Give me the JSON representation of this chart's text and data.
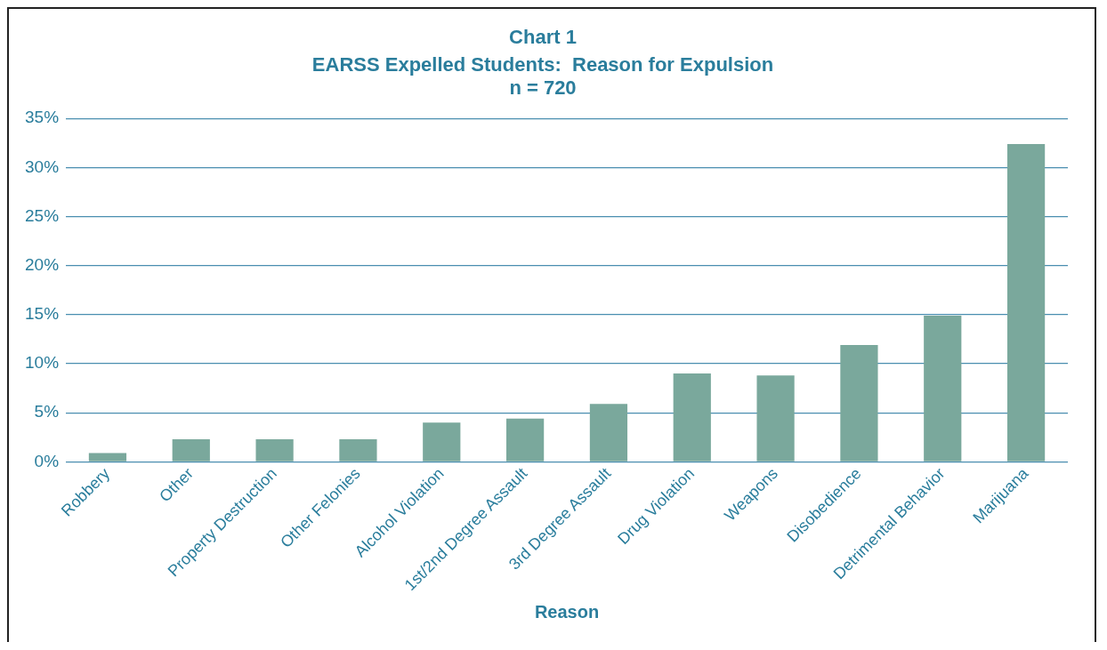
{
  "chart_data": {
    "type": "bar",
    "title": "Chart 1",
    "subtitle": "EARSS Expelled Students:  Reason for Expulsion\nn = 720",
    "xlabel": "Reason",
    "categories": [
      "Robbery",
      "Other",
      "Property Destruction",
      "Other Felonies",
      "Alcohol Violation",
      "1st/2nd Degree Assault",
      "3rd Degree Assault",
      "Drug Violation",
      "Weapons",
      "Disobedience",
      "Detrimental Behavior",
      "Marijuana"
    ],
    "values": [
      0.9,
      2.3,
      2.3,
      2.3,
      4.0,
      4.4,
      5.9,
      9.0,
      8.8,
      11.9,
      14.9,
      32.4
    ],
    "color": "#7aa89c",
    "ylim": [
      0,
      35
    ],
    "yticks": [
      {
        "value": 0,
        "label": "0%"
      },
      {
        "value": 5,
        "label": "5%"
      },
      {
        "value": 10,
        "label": "10%"
      },
      {
        "value": 15,
        "label": "15%"
      },
      {
        "value": 20,
        "label": "20%"
      },
      {
        "value": 25,
        "label": "25%"
      },
      {
        "value": 30,
        "label": "30%"
      },
      {
        "value": 35,
        "label": "35%"
      }
    ],
    "grid": "y",
    "legend": false
  }
}
